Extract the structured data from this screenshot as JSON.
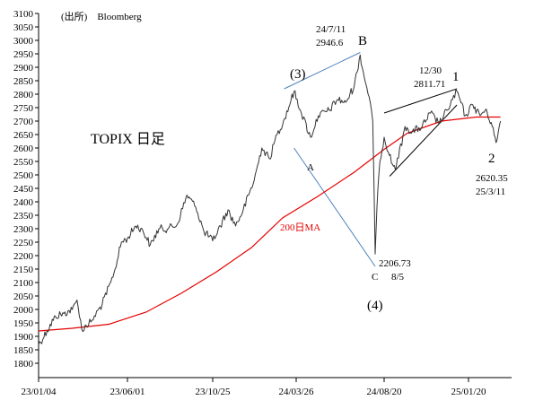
{
  "source_label": "(出所)　Bloomberg",
  "chart_title": "TOPIX 日足",
  "colors": {
    "price": "#333333",
    "moving_average": "#e60000",
    "trendline_blue": "#4f81bd",
    "trendline_black": "#000000",
    "axis": "#000000"
  },
  "annotations": {
    "peak_b_date": "24/7/11",
    "peak_b_value": "2946.6",
    "peak_b_label": "B",
    "wave3_label": "(3)",
    "point_a_label": "A",
    "low_c_value": "2206.73",
    "low_c_date": "8/5",
    "low_c_label": "C",
    "wave4_label": "(4)",
    "high_1230_date": "12/30",
    "high_1230_value": "2811.71",
    "wave1_label": "1",
    "wave2_label": "2",
    "latest_value": "2620.35",
    "latest_date": "25/3/11",
    "ma_label": "200日MA"
  },
  "chart_data": {
    "type": "line",
    "title": "TOPIX 日足",
    "xlabel": "",
    "ylabel": "",
    "ylim": [
      1800,
      3100
    ],
    "y_ticks": [
      1800,
      1850,
      1900,
      1950,
      2000,
      2050,
      2100,
      2150,
      2200,
      2250,
      2300,
      2350,
      2400,
      2450,
      2500,
      2550,
      2600,
      2650,
      2700,
      2750,
      2800,
      2850,
      2900,
      2950,
      3000,
      3050,
      3100
    ],
    "x_ticks": [
      "23/01/04",
      "23/06/01",
      "23/10/25",
      "24/03/26",
      "24/08/20",
      "25/01/20"
    ],
    "x_tick_dates": [
      "2023-01-04",
      "2023-06-01",
      "2023-10-25",
      "2024-03-26",
      "2024-08-20",
      "2025-01-20"
    ],
    "grid": false,
    "series": [
      {
        "name": "",
        "role": "price",
        "x": [
          "2023-01-04",
          "2023-01-18",
          "2023-02-01",
          "2023-02-15",
          "2023-03-01",
          "2023-03-09",
          "2023-03-17",
          "2023-04-03",
          "2023-04-20",
          "2023-05-08",
          "2023-05-22",
          "2023-06-01",
          "2023-06-15",
          "2023-06-26",
          "2023-07-10",
          "2023-07-25",
          "2023-08-10",
          "2023-08-25",
          "2023-09-11",
          "2023-09-26",
          "2023-10-10",
          "2023-10-25",
          "2023-11-08",
          "2023-11-22",
          "2023-12-06",
          "2023-12-20",
          "2024-01-09",
          "2024-01-23",
          "2024-02-06",
          "2024-02-20",
          "2024-03-05",
          "2024-03-22",
          "2024-04-02",
          "2024-04-19",
          "2024-05-02",
          "2024-05-20",
          "2024-06-03",
          "2024-06-17",
          "2024-07-01",
          "2024-07-11",
          "2024-07-18",
          "2024-07-26",
          "2024-08-01",
          "2024-08-05",
          "2024-08-08",
          "2024-08-13",
          "2024-08-20",
          "2024-09-04",
          "2024-09-11",
          "2024-09-27",
          "2024-10-10",
          "2024-10-28",
          "2024-11-12",
          "2024-11-28",
          "2024-12-12",
          "2024-12-30",
          "2025-01-14",
          "2025-01-28",
          "2025-02-10",
          "2025-02-21",
          "2025-03-04",
          "2025-03-11",
          "2025-03-19"
        ],
        "values": [
          1868,
          1920,
          1975,
          1985,
          2000,
          2035,
          1925,
          1960,
          2020,
          2120,
          2250,
          2265,
          2310,
          2300,
          2240,
          2300,
          2300,
          2315,
          2425,
          2380,
          2290,
          2255,
          2310,
          2370,
          2310,
          2370,
          2480,
          2600,
          2560,
          2650,
          2710,
          2810,
          2740,
          2640,
          2720,
          2740,
          2780,
          2770,
          2830,
          2946,
          2860,
          2790,
          2700,
          2206,
          2380,
          2550,
          2640,
          2540,
          2530,
          2680,
          2660,
          2680,
          2730,
          2690,
          2740,
          2811,
          2720,
          2760,
          2720,
          2745,
          2680,
          2620,
          2700
        ]
      },
      {
        "name": "200日MA",
        "role": "moving_average",
        "x": [
          "2023-01-04",
          "2023-03-01",
          "2023-05-01",
          "2023-07-03",
          "2023-09-01",
          "2023-11-01",
          "2024-01-04",
          "2024-03-01",
          "2024-05-01",
          "2024-07-01",
          "2024-08-20",
          "2024-10-01",
          "2024-12-02",
          "2025-02-03",
          "2025-03-19"
        ],
        "values": [
          1920,
          1930,
          1945,
          1990,
          2060,
          2140,
          2230,
          2340,
          2420,
          2510,
          2595,
          2655,
          2700,
          2715,
          2715
        ]
      }
    ],
    "trendlines": [
      {
        "name": "",
        "color": "blue",
        "from": [
          "2024-03-04",
          2820
        ],
        "to": [
          "2024-07-11",
          2955
        ]
      },
      {
        "name": "",
        "color": "blue",
        "from": [
          "2024-03-22",
          2600
        ],
        "to": [
          "2024-08-05",
          2160
        ]
      },
      {
        "name": "",
        "color": "black",
        "from": [
          "2024-08-20",
          2730
        ],
        "to": [
          "2024-12-30",
          2820
        ]
      },
      {
        "name": "",
        "color": "black",
        "from": [
          "2024-08-30",
          2495
        ],
        "to": [
          "2024-12-30",
          2760
        ]
      }
    ]
  }
}
